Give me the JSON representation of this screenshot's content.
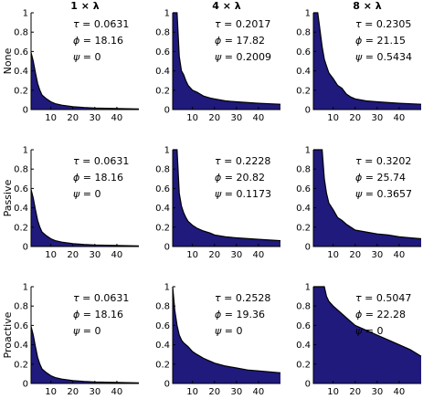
{
  "colors": {
    "fill": "#1f1a7c",
    "line": "#000000",
    "highlight": "#e3151a"
  },
  "columns": [
    "1 × λ",
    "4 × λ",
    "8 × λ"
  ],
  "rows": [
    "None",
    "Passive",
    "Proactive"
  ],
  "chart_data": {
    "type": "area",
    "grid": "off",
    "xlim": [
      1,
      50
    ],
    "ylim": [
      0,
      1
    ],
    "xticks": [
      "10",
      "20",
      "30",
      "40"
    ],
    "yticks": [
      "0",
      "0.2",
      "0.4",
      "0.6",
      "0.8",
      "1"
    ],
    "panels": [
      {
        "row": "None",
        "column": "1 × λ",
        "annotations": [
          {
            "symbol": "τ",
            "value": "0.0631"
          },
          {
            "symbol": "ϕ",
            "value": "18.16"
          },
          {
            "symbol": "ψ",
            "value": "0",
            "highlight": false
          }
        ],
        "curve": {
          "x": [
            1,
            2,
            3,
            4,
            5,
            6,
            8,
            10,
            12,
            15,
            20,
            25,
            30,
            40,
            50
          ],
          "y": [
            0.59,
            0.5,
            0.38,
            0.27,
            0.2,
            0.15,
            0.11,
            0.08,
            0.06,
            0.045,
            0.03,
            0.022,
            0.016,
            0.01,
            0.006
          ]
        }
      },
      {
        "row": "None",
        "column": "4 × λ",
        "annotations": [
          {
            "symbol": "τ",
            "value": "0.2017"
          },
          {
            "symbol": "ϕ",
            "value": "17.82"
          },
          {
            "symbol": "ψ",
            "value": "0.2009",
            "highlight": true
          }
        ],
        "curve": {
          "x": [
            1,
            3,
            4,
            5,
            6,
            7,
            8,
            10,
            12,
            15,
            18,
            20,
            25,
            30,
            40,
            50
          ],
          "y": [
            1.0,
            1.0,
            0.55,
            0.4,
            0.36,
            0.3,
            0.25,
            0.2,
            0.18,
            0.14,
            0.12,
            0.11,
            0.09,
            0.08,
            0.065,
            0.055
          ]
        }
      },
      {
        "row": "None",
        "column": "8 × λ",
        "annotations": [
          {
            "symbol": "τ",
            "value": "0.2305"
          },
          {
            "symbol": "ϕ",
            "value": "21.15"
          },
          {
            "symbol": "ψ",
            "value": "0.5434",
            "highlight": true
          }
        ],
        "curve": {
          "x": [
            1,
            3,
            5,
            6,
            7,
            8,
            10,
            12,
            14,
            16,
            18,
            20,
            25,
            30,
            40,
            50
          ],
          "y": [
            1.0,
            1.0,
            0.65,
            0.52,
            0.45,
            0.38,
            0.32,
            0.25,
            0.22,
            0.16,
            0.13,
            0.11,
            0.09,
            0.08,
            0.065,
            0.055
          ]
        }
      },
      {
        "row": "Passive",
        "column": "1 × λ",
        "annotations": [
          {
            "symbol": "τ",
            "value": "0.0631"
          },
          {
            "symbol": "ϕ",
            "value": "18.16"
          },
          {
            "symbol": "ψ",
            "value": "0",
            "highlight": false
          }
        ],
        "curve": {
          "x": [
            1,
            2,
            3,
            4,
            5,
            6,
            8,
            10,
            12,
            15,
            20,
            25,
            30,
            40,
            50
          ],
          "y": [
            0.59,
            0.5,
            0.38,
            0.27,
            0.2,
            0.15,
            0.11,
            0.08,
            0.06,
            0.045,
            0.03,
            0.022,
            0.016,
            0.01,
            0.006
          ]
        }
      },
      {
        "row": "Passive",
        "column": "4 × λ",
        "annotations": [
          {
            "symbol": "τ",
            "value": "0.2228"
          },
          {
            "symbol": "ϕ",
            "value": "20.82"
          },
          {
            "symbol": "ψ",
            "value": "0.1173",
            "highlight": true
          }
        ],
        "curve": {
          "x": [
            1,
            3,
            4,
            5,
            6,
            7,
            8,
            10,
            12,
            15,
            18,
            20,
            25,
            30,
            40,
            50
          ],
          "y": [
            1.0,
            1.0,
            0.55,
            0.42,
            0.35,
            0.3,
            0.26,
            0.22,
            0.19,
            0.16,
            0.14,
            0.12,
            0.1,
            0.09,
            0.075,
            0.06
          ]
        }
      },
      {
        "row": "Passive",
        "column": "8 × λ",
        "annotations": [
          {
            "symbol": "τ",
            "value": "0.3202"
          },
          {
            "symbol": "ϕ",
            "value": "25.74"
          },
          {
            "symbol": "ψ",
            "value": "0.3657",
            "highlight": true
          }
        ],
        "curve": {
          "x": [
            1,
            5,
            6,
            7,
            8,
            10,
            12,
            14,
            16,
            18,
            20,
            25,
            30,
            35,
            40,
            45,
            50
          ],
          "y": [
            1.0,
            1.0,
            0.7,
            0.55,
            0.45,
            0.38,
            0.3,
            0.27,
            0.23,
            0.2,
            0.17,
            0.15,
            0.13,
            0.12,
            0.1,
            0.09,
            0.08
          ]
        }
      },
      {
        "row": "Proactive",
        "column": "1 × λ",
        "annotations": [
          {
            "symbol": "τ",
            "value": "0.0631"
          },
          {
            "symbol": "ϕ",
            "value": "18.16"
          },
          {
            "symbol": "ψ",
            "value": "0",
            "highlight": false
          }
        ],
        "curve": {
          "x": [
            1,
            2,
            3,
            4,
            5,
            6,
            8,
            10,
            12,
            15,
            20,
            25,
            30,
            40,
            50
          ],
          "y": [
            0.59,
            0.5,
            0.38,
            0.27,
            0.2,
            0.15,
            0.11,
            0.08,
            0.06,
            0.045,
            0.03,
            0.022,
            0.016,
            0.01,
            0.006
          ]
        }
      },
      {
        "row": "Proactive",
        "column": "4 × λ",
        "annotations": [
          {
            "symbol": "τ",
            "value": "0.2528"
          },
          {
            "symbol": "ϕ",
            "value": "19.36"
          },
          {
            "symbol": "ψ",
            "value": "0",
            "highlight": false
          }
        ],
        "curve": {
          "x": [
            1,
            2,
            3,
            4,
            5,
            6,
            8,
            10,
            12,
            15,
            18,
            20,
            25,
            30,
            35,
            40,
            50
          ],
          "y": [
            1.0,
            0.75,
            0.6,
            0.5,
            0.45,
            0.42,
            0.38,
            0.33,
            0.3,
            0.26,
            0.23,
            0.21,
            0.18,
            0.16,
            0.14,
            0.13,
            0.11
          ]
        }
      },
      {
        "row": "Proactive",
        "column": "8 × λ",
        "annotations": [
          {
            "symbol": "τ",
            "value": "0.5047"
          },
          {
            "symbol": "ϕ",
            "value": "22.28"
          },
          {
            "symbol": "ψ",
            "value": "0",
            "highlight": false
          }
        ],
        "curve": {
          "x": [
            1,
            6,
            7,
            8,
            10,
            12,
            15,
            18,
            20,
            25,
            30,
            35,
            40,
            45,
            50
          ],
          "y": [
            1.0,
            1.0,
            0.9,
            0.85,
            0.8,
            0.76,
            0.7,
            0.64,
            0.6,
            0.55,
            0.5,
            0.45,
            0.4,
            0.35,
            0.28
          ]
        }
      }
    ]
  }
}
